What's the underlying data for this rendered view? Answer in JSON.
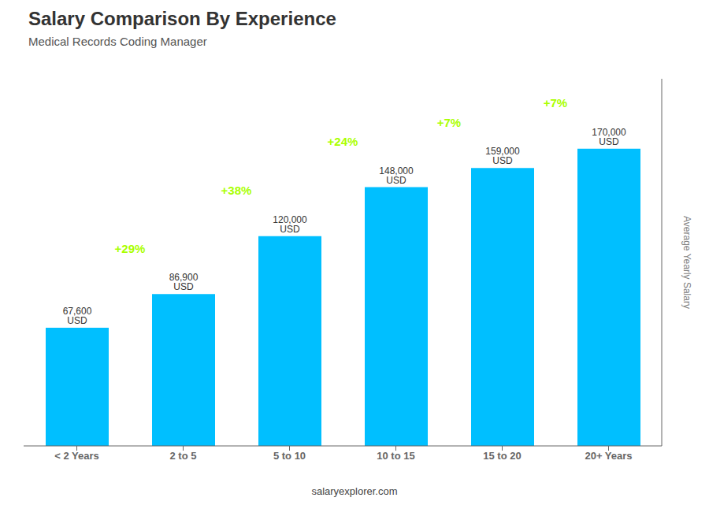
{
  "chart_data": {
    "type": "bar",
    "title": "Salary Comparison By Experience",
    "subtitle": "Medical Records Coding Manager",
    "categories": [
      "< 2 Years",
      "2 to 5",
      "5 to 10",
      "10 to 15",
      "15 to 20",
      "20+ Years"
    ],
    "values": [
      67600,
      86900,
      120000,
      148000,
      159000,
      170000
    ],
    "value_labels": [
      "67,600 USD",
      "86,900 USD",
      "120,000 USD",
      "148,000 USD",
      "159,000 USD",
      "170,000 USD"
    ],
    "data_labels": true,
    "color": "#00BFFF",
    "ylim": [
      0,
      210000
    ],
    "tick_labels": "x",
    "ylabel": "Average Yearly Salary",
    "annotations": [
      {
        "text": "+29%",
        "color": "#AAFF00"
      },
      {
        "text": "+38%",
        "color": "#AAFF00"
      },
      {
        "text": "+24%",
        "color": "#AAFF00"
      },
      {
        "text": "+7%",
        "color": "#AAFF00"
      },
      {
        "text": "+7%",
        "color": "#AAFF00"
      }
    ],
    "footer": "salaryexplorer.com"
  }
}
